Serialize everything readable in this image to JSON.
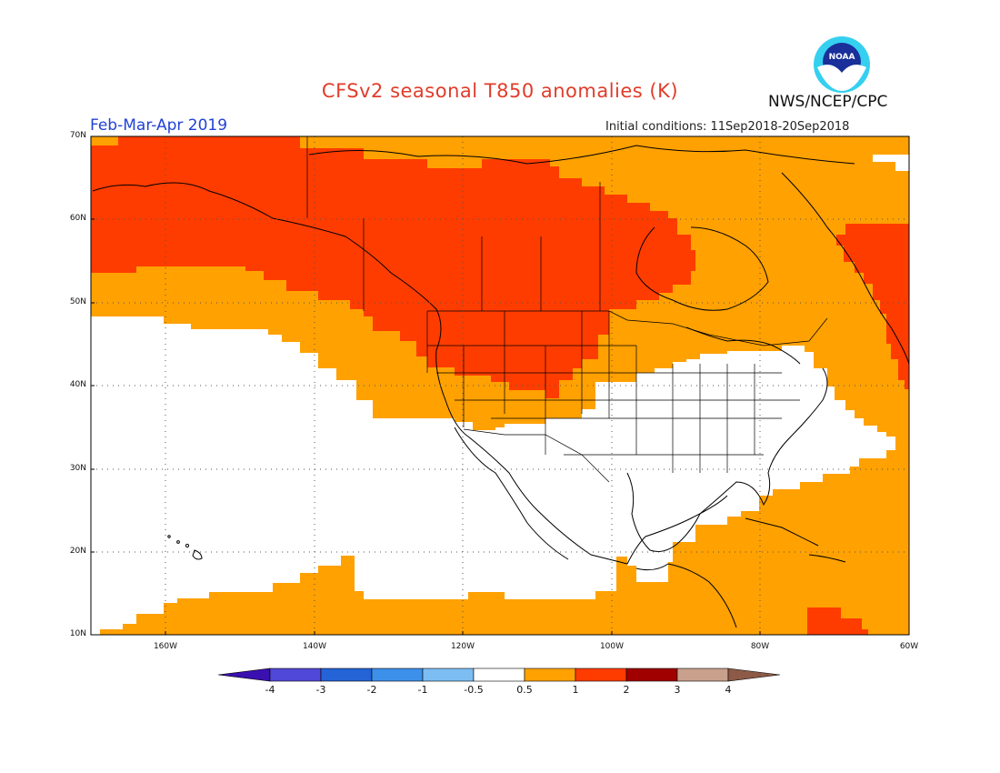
{
  "header": {
    "title": "CFSv2 seasonal T850 anomalies (K)",
    "agency": "NWS/NCEP/CPC",
    "period": "Feb-Mar-Apr 2019",
    "initial_conditions": "Initial conditions: 11Sep2018-20Sep2018",
    "logo_text": "NOAA"
  },
  "axes": {
    "lat_ticks": [
      "70N",
      "60N",
      "50N",
      "40N",
      "30N",
      "20N",
      "10N"
    ],
    "lon_ticks": [
      "160W",
      "140W",
      "120W",
      "100W",
      "80W",
      "60W"
    ]
  },
  "colorbar": {
    "labels": [
      "-4",
      "-3",
      "-2",
      "-1",
      "-0.5",
      "0.5",
      "1",
      "2",
      "3",
      "4"
    ],
    "colors": [
      "#3a10b0",
      "#5048d6",
      "#2464d6",
      "#3c90ea",
      "#7cbef2",
      "#ffffff",
      "#ffa100",
      "#ff3c00",
      "#a00000",
      "#c8a08c",
      "#8c5a46"
    ]
  },
  "colors": {
    "anomaly_0_5_to_1": "#ffa100",
    "anomaly_1_to_2": "#ff3c00",
    "neutral": "#ffffff"
  }
}
